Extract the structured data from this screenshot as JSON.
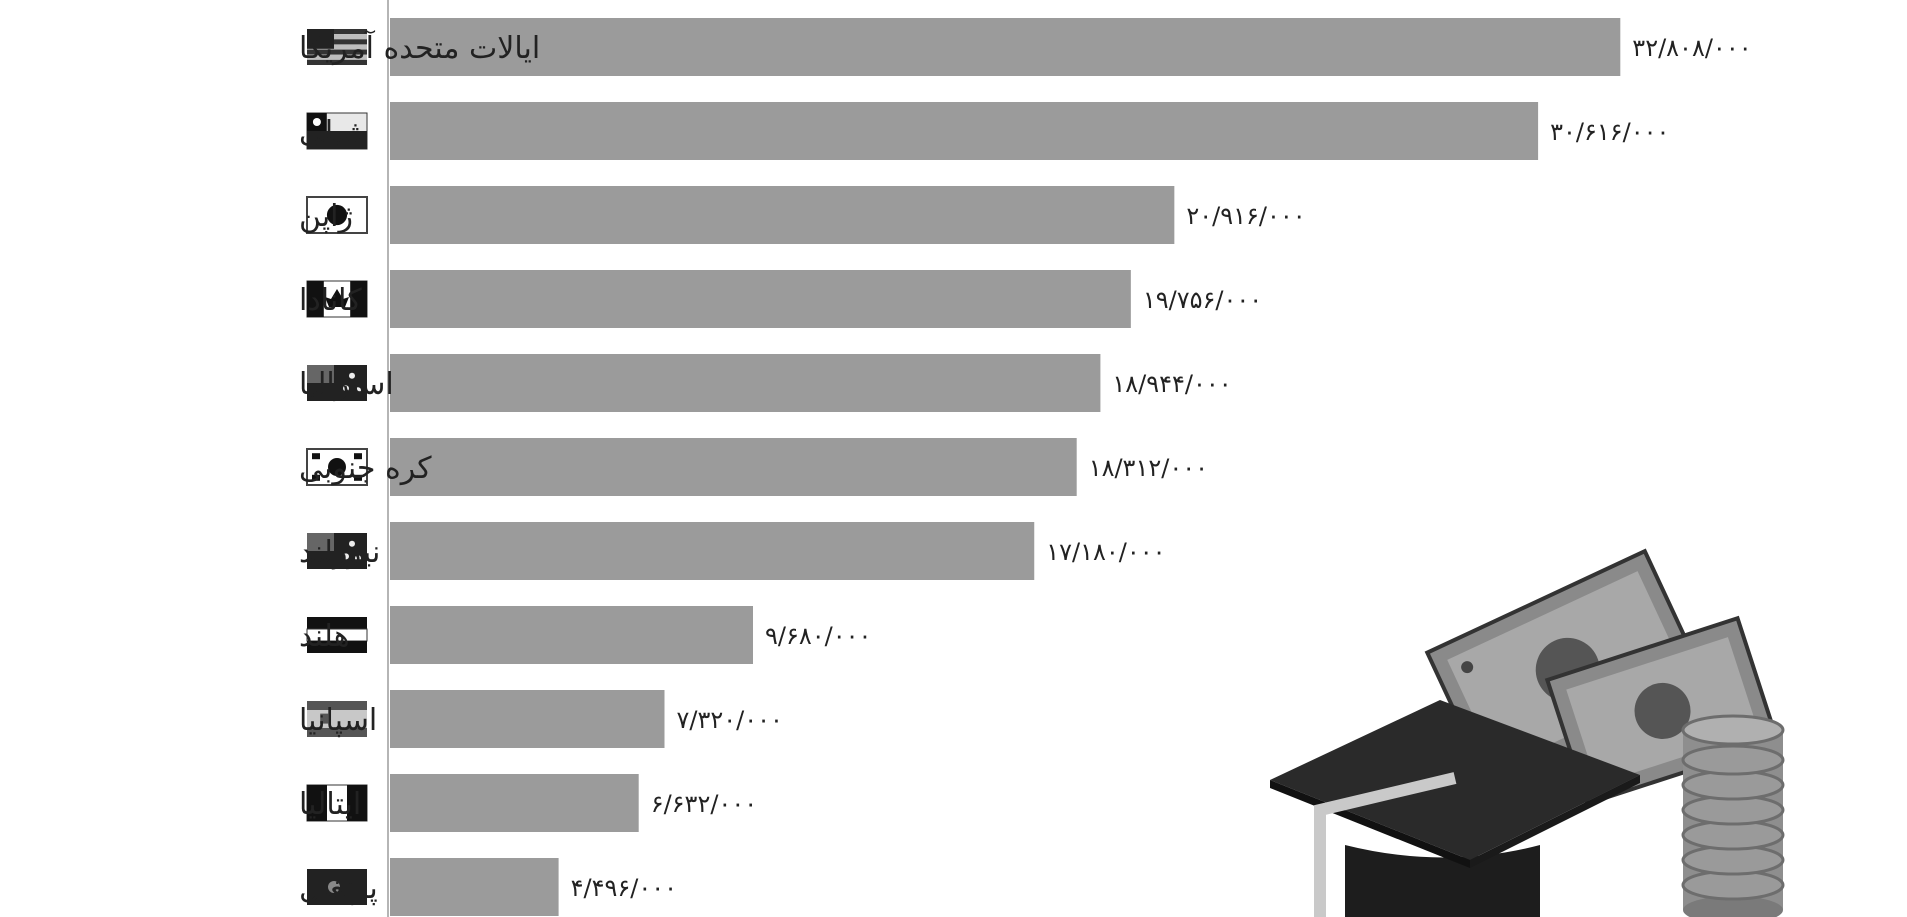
{
  "chart_data": {
    "type": "bar",
    "orientation": "horizontal",
    "title": "",
    "xlabel": "",
    "ylabel": "",
    "xlim": [
      0,
      40000000
    ],
    "grid": false,
    "categories": [
      "ایالات متحده آمریکا",
      "شیلی",
      "ژاپن",
      "کانادا",
      "استرالیا",
      "کره جنوبی",
      "نیوزلند",
      "هلند",
      "اسپانیا",
      "ایتالیا",
      "پرتغال"
    ],
    "values": [
      32808000,
      30616000,
      20916000,
      19756000,
      18944000,
      18312000,
      17180000,
      9680000,
      7320000,
      6632000,
      4496000
    ],
    "value_labels": [
      "۳۲/۸۰۸/۰۰۰",
      "۳۰/۶۱۶/۰۰۰",
      "۲۰/۹۱۶/۰۰۰",
      "۱۹/۷۵۶/۰۰۰",
      "۱۸/۹۴۴/۰۰۰",
      "۱۸/۳۱۲/۰۰۰",
      "۱۷/۱۸۰/۰۰۰",
      "۹/۶۸۰/۰۰۰",
      "۷/۳۲۰/۰۰۰",
      "۶/۶۳۲/۰۰۰",
      "۴/۴۹۶/۰۰۰"
    ],
    "flag_icons": [
      "usa-flag-icon",
      "chile-flag-icon",
      "japan-flag-icon",
      "canada-flag-icon",
      "australia-flag-icon",
      "south-korea-flag-icon",
      "new-zealand-flag-icon",
      "netherlands-flag-icon",
      "spain-flag-icon",
      "italy-flag-icon",
      "portugal-flag-icon"
    ],
    "colors": {
      "bar": "#9b9b9b",
      "axis": "#aaaaaa",
      "text": "#222222"
    }
  },
  "illustration": {
    "icon": "graduation-cap-money-icon"
  }
}
